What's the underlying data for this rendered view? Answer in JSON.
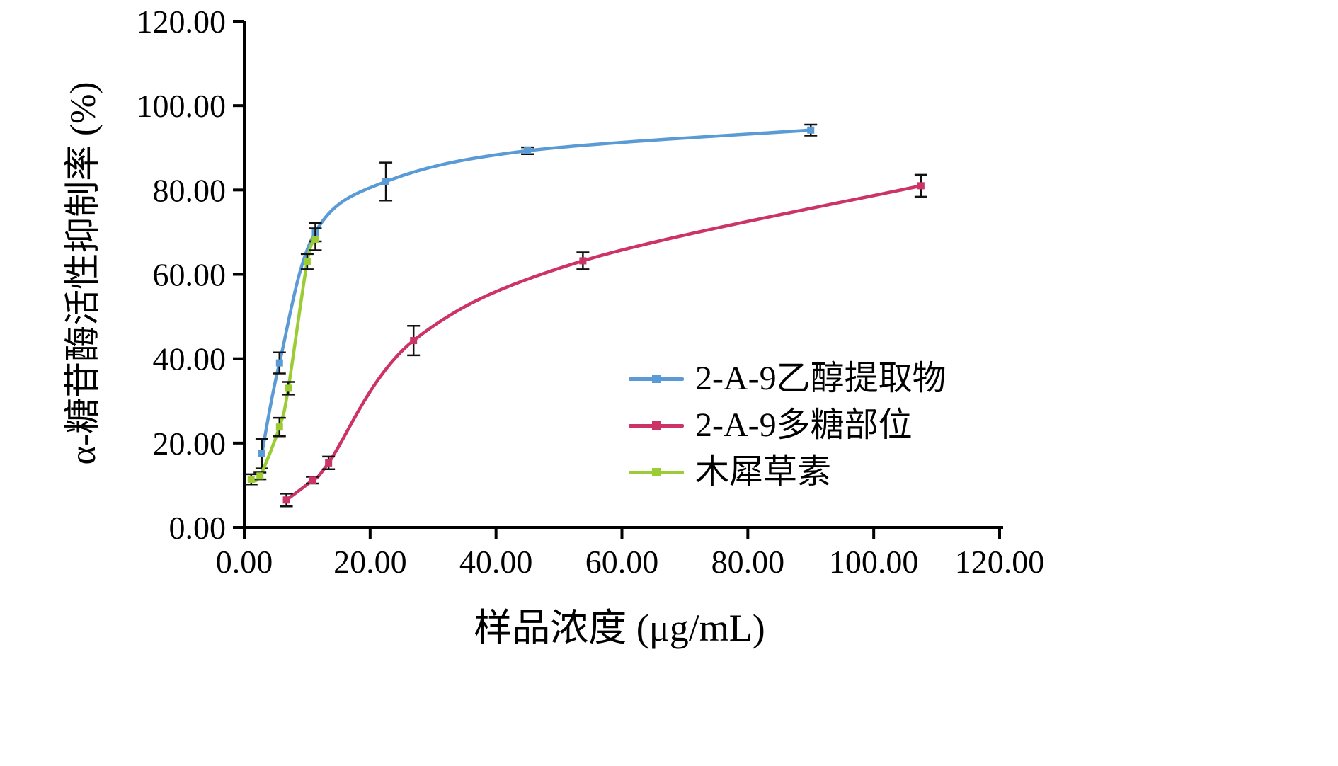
{
  "chart_data": {
    "type": "line",
    "title": "",
    "xlabel": "样品浓度 (μg/mL)",
    "ylabel": "α-糖苷酶活性抑制率 (%)",
    "xlim": [
      0,
      120
    ],
    "ylim": [
      0,
      120
    ],
    "xticks": [
      0,
      20,
      40,
      60,
      80,
      100,
      120
    ],
    "yticks": [
      0,
      20,
      40,
      60,
      80,
      100,
      120
    ],
    "tick_decimals": 2,
    "grid": false,
    "axis_color": "#000000",
    "errorbar_color": "#111111",
    "legend_position": "inside-right-middle",
    "series": [
      {
        "name": "2-A-9乙醇提取物",
        "color": "#5b9bd5",
        "points": [
          {
            "x": 2.8,
            "y": 17.5,
            "err": 3.5
          },
          {
            "x": 5.6,
            "y": 39.0,
            "err": 2.5
          },
          {
            "x": 11.3,
            "y": 70.0,
            "err": 2.2
          },
          {
            "x": 22.5,
            "y": 82.0,
            "err": 4.5
          },
          {
            "x": 45.0,
            "y": 89.3,
            "err": 0.8
          },
          {
            "x": 90.0,
            "y": 94.2,
            "err": 1.3
          }
        ]
      },
      {
        "name": "2-A-9多糖部位",
        "color": "#cc3366",
        "points": [
          {
            "x": 6.7,
            "y": 6.5,
            "err": 1.5
          },
          {
            "x": 10.8,
            "y": 11.2,
            "err": 0.8
          },
          {
            "x": 13.4,
            "y": 15.3,
            "err": 1.5
          },
          {
            "x": 26.9,
            "y": 44.3,
            "err": 3.5
          },
          {
            "x": 53.8,
            "y": 63.2,
            "err": 2.0
          },
          {
            "x": 107.5,
            "y": 81.0,
            "err": 2.6
          }
        ]
      },
      {
        "name": "木犀草素",
        "color": "#9ccc33",
        "points": [
          {
            "x": 1.1,
            "y": 11.4,
            "err": 1.2
          },
          {
            "x": 2.5,
            "y": 12.2,
            "err": 0.8
          },
          {
            "x": 5.6,
            "y": 23.8,
            "err": 2.2
          },
          {
            "x": 7.0,
            "y": 33.0,
            "err": 1.5
          },
          {
            "x": 10.0,
            "y": 63.0,
            "err": 1.8
          },
          {
            "x": 11.3,
            "y": 68.3,
            "err": 2.6
          }
        ]
      }
    ]
  }
}
